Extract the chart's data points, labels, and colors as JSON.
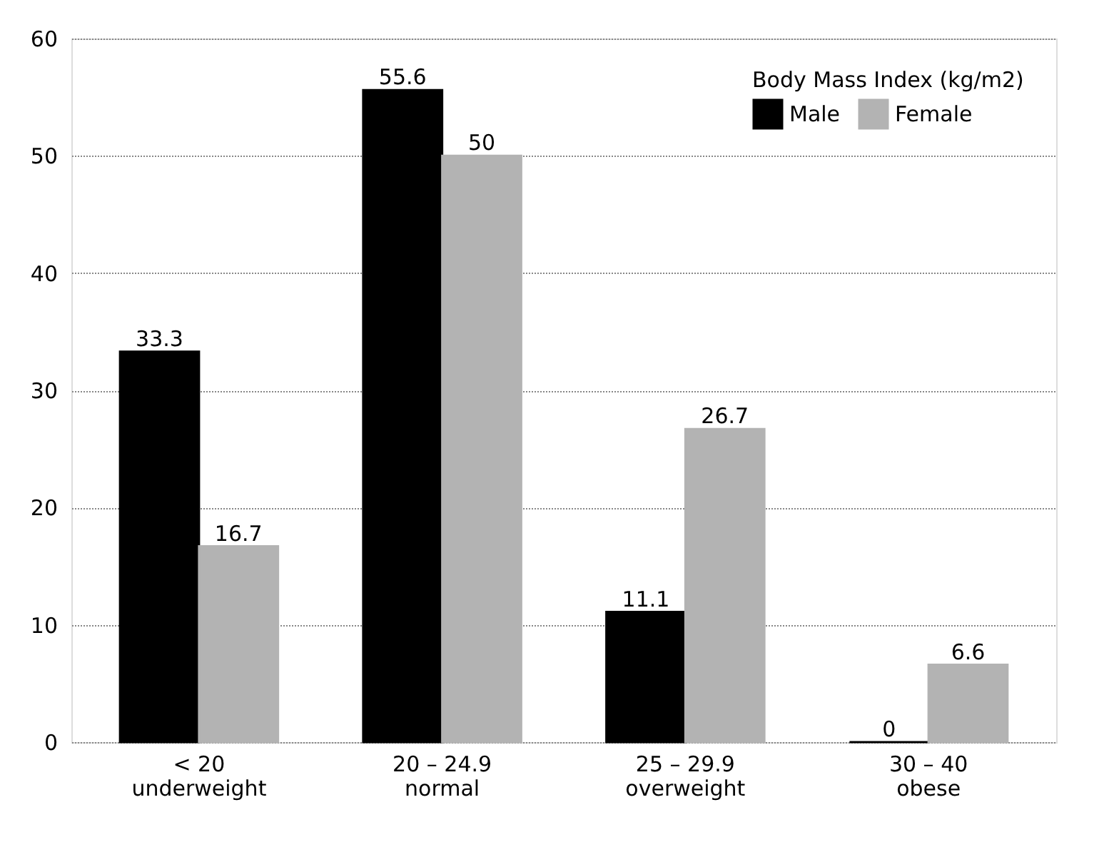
{
  "chart_data": {
    "type": "bar",
    "categories": [
      "< 20\nunderweight",
      "20 – 24.9\nnormal",
      "25 – 29.9\noverweight",
      "30 – 40\nobese"
    ],
    "series": [
      {
        "name": "Male",
        "color": "#000000",
        "values": [
          33.3,
          55.6,
          11.1,
          0
        ]
      },
      {
        "name": "Female",
        "color": "#b3b3b3",
        "values": [
          16.7,
          50,
          26.7,
          6.6
        ]
      }
    ],
    "legend_title": "Body Mass Index (kg/m2)",
    "legend": "top right",
    "data_labels": true,
    "ylim": [
      0,
      60
    ],
    "yticks": [
      0,
      10,
      20,
      30,
      40,
      50,
      60
    ],
    "grid": "y"
  }
}
